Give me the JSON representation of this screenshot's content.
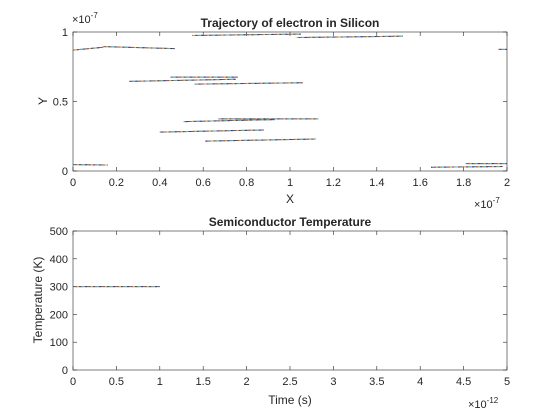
{
  "figure": {
    "background": "#ffffff",
    "axes_color": "#262626",
    "trace_colors": [
      "#0072bd",
      "#d95319",
      "#edb120",
      "#7e2f8e",
      "#77ac30",
      "#4dbeee",
      "#a2142f"
    ]
  },
  "chart_data": [
    {
      "type": "line",
      "title": "Trajectory of electron in Silicon",
      "xlabel": "X",
      "ylabel": "Y",
      "xlim": [
        0,
        2e-07
      ],
      "ylim": [
        0,
        1e-07
      ],
      "xticks": [
        0,
        2e-08,
        4e-08,
        6e-08,
        8e-08,
        1e-07,
        1.2e-07,
        1.4e-07,
        1.6e-07,
        1.8e-07,
        2e-07
      ],
      "xtick_labels": [
        "0",
        "0.2",
        "0.4",
        "0.6",
        "0.8",
        "1",
        "1.2",
        "1.4",
        "1.6",
        "1.8",
        "2"
      ],
      "yticks": [
        0,
        5e-08,
        1e-07
      ],
      "ytick_labels": [
        "0",
        "0.5",
        "1"
      ],
      "x_exponent": "-7",
      "y_exponent": "-7",
      "exponent_base": "×10",
      "grid": false,
      "series": [
        {
          "x": [
            0,
            1.6e-08
          ],
          "y": [
            4.6e-09,
            4.3e-09
          ]
        },
        {
          "x": [
            1.4e-08,
            4.7e-08
          ],
          "y": [
            8.95e-08,
            8.8e-08
          ]
        },
        {
          "x": [
            0,
            1.4e-08
          ],
          "y": [
            8.7e-08,
            8.9e-08
          ]
        },
        {
          "x": [
            5.5e-08,
            1.05e-07
          ],
          "y": [
            9.75e-08,
            9.85e-08
          ]
        },
        {
          "x": [
            1.03e-07,
            1.52e-07
          ],
          "y": [
            9.6e-08,
            9.7e-08
          ]
        },
        {
          "x": [
            1.96e-07,
            2e-07
          ],
          "y": [
            8.75e-08,
            8.75e-08
          ]
        },
        {
          "x": [
            2.6e-08,
            7.5e-08
          ],
          "y": [
            6.45e-08,
            6.6e-08
          ]
        },
        {
          "x": [
            4.5e-08,
            7.6e-08
          ],
          "y": [
            6.75e-08,
            6.75e-08
          ]
        },
        {
          "x": [
            5.6e-08,
            1.06e-07
          ],
          "y": [
            6.25e-08,
            6.35e-08
          ]
        },
        {
          "x": [
            6.7e-08,
            1.13e-07
          ],
          "y": [
            3.75e-08,
            3.75e-08
          ]
        },
        {
          "x": [
            5.1e-08,
            9.3e-08
          ],
          "y": [
            3.55e-08,
            3.7e-08
          ]
        },
        {
          "x": [
            4e-08,
            8.8e-08
          ],
          "y": [
            2.8e-08,
            2.95e-08
          ]
        },
        {
          "x": [
            6.1e-08,
            1.12e-07
          ],
          "y": [
            2.15e-08,
            2.3e-08
          ]
        },
        {
          "x": [
            1.65e-07,
            1.98e-07
          ],
          "y": [
            2.7e-09,
            3.2e-09
          ]
        },
        {
          "x": [
            1.81e-07,
            2e-07
          ],
          "y": [
            5.3e-09,
            5.3e-09
          ]
        }
      ]
    },
    {
      "type": "line",
      "title": "Semiconductor Temperature",
      "xlabel": "Time (s)",
      "ylabel": "Temperature (K)",
      "xlim": [
        0,
        5e-12
      ],
      "ylim": [
        0,
        500
      ],
      "xticks": [
        0,
        5e-13,
        1e-12,
        1.5e-12,
        2e-12,
        2.5e-12,
        3e-12,
        3.5e-12,
        4e-12,
        4.5e-12,
        5e-12
      ],
      "xtick_labels": [
        "0",
        "0.5",
        "1",
        "1.5",
        "2",
        "2.5",
        "3",
        "3.5",
        "4",
        "4.5",
        "5"
      ],
      "yticks": [
        0,
        100,
        200,
        300,
        400,
        500
      ],
      "ytick_labels": [
        "0",
        "100",
        "200",
        "300",
        "400",
        "500"
      ],
      "x_exponent": "-12",
      "exponent_base": "×10",
      "grid": false,
      "series": [
        {
          "x": [
            0,
            1e-12
          ],
          "y": [
            300,
            300
          ]
        }
      ]
    }
  ]
}
